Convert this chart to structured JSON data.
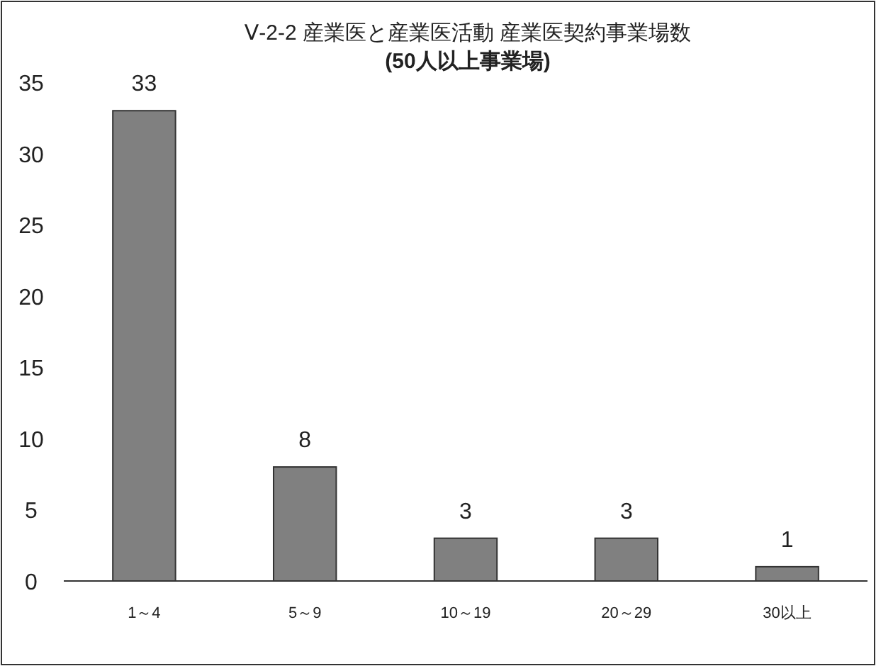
{
  "chart_data": {
    "type": "bar",
    "title": "Ⅴ-2-2 産業医と産業医活動 産業医契約事業場数",
    "subtitle": "(50人以上事業場)",
    "categories": [
      "1～4",
      "5～9",
      "10～19",
      "20～29",
      "30以上"
    ],
    "values": [
      33,
      8,
      3,
      3,
      1
    ],
    "color": "#808080",
    "ylim": [
      0,
      35
    ],
    "yticks": [
      0,
      5,
      10,
      15,
      20,
      25,
      30,
      35
    ],
    "grid": false,
    "data_labels": true
  }
}
